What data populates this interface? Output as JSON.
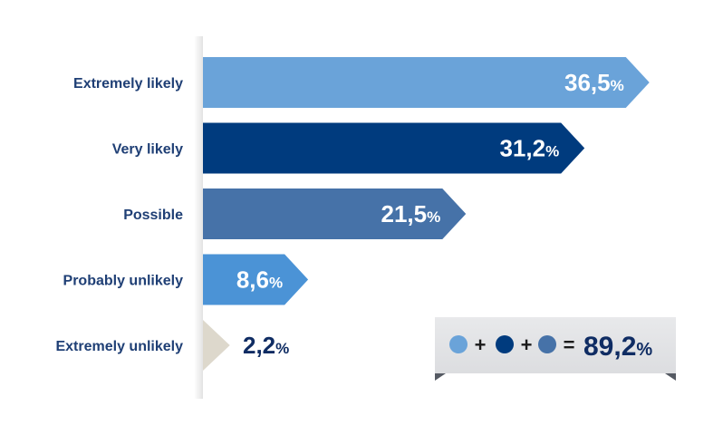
{
  "chart_data": {
    "type": "bar",
    "orientation": "horizontal",
    "categories": [
      "Extremely likely",
      "Very likely",
      "Possible",
      "Probably unlikely",
      "Extremely unlikely"
    ],
    "values": [
      36.5,
      31.2,
      21.5,
      8.6,
      2.2
    ],
    "value_labels": [
      "36,5",
      "31,2",
      "21,5",
      "8,6",
      "2,2"
    ],
    "unit": "%",
    "colors": [
      "#6aa3d9",
      "#003b7e",
      "#4672a8",
      "#4b93d6",
      "#ddd8cc"
    ],
    "grid": false,
    "legend": "none"
  },
  "summary": {
    "dot_colors": [
      "#6aa3d9",
      "#003b7e",
      "#4672a8"
    ],
    "plus": "+",
    "equals": "=",
    "total": "89,2",
    "unit": "%"
  }
}
